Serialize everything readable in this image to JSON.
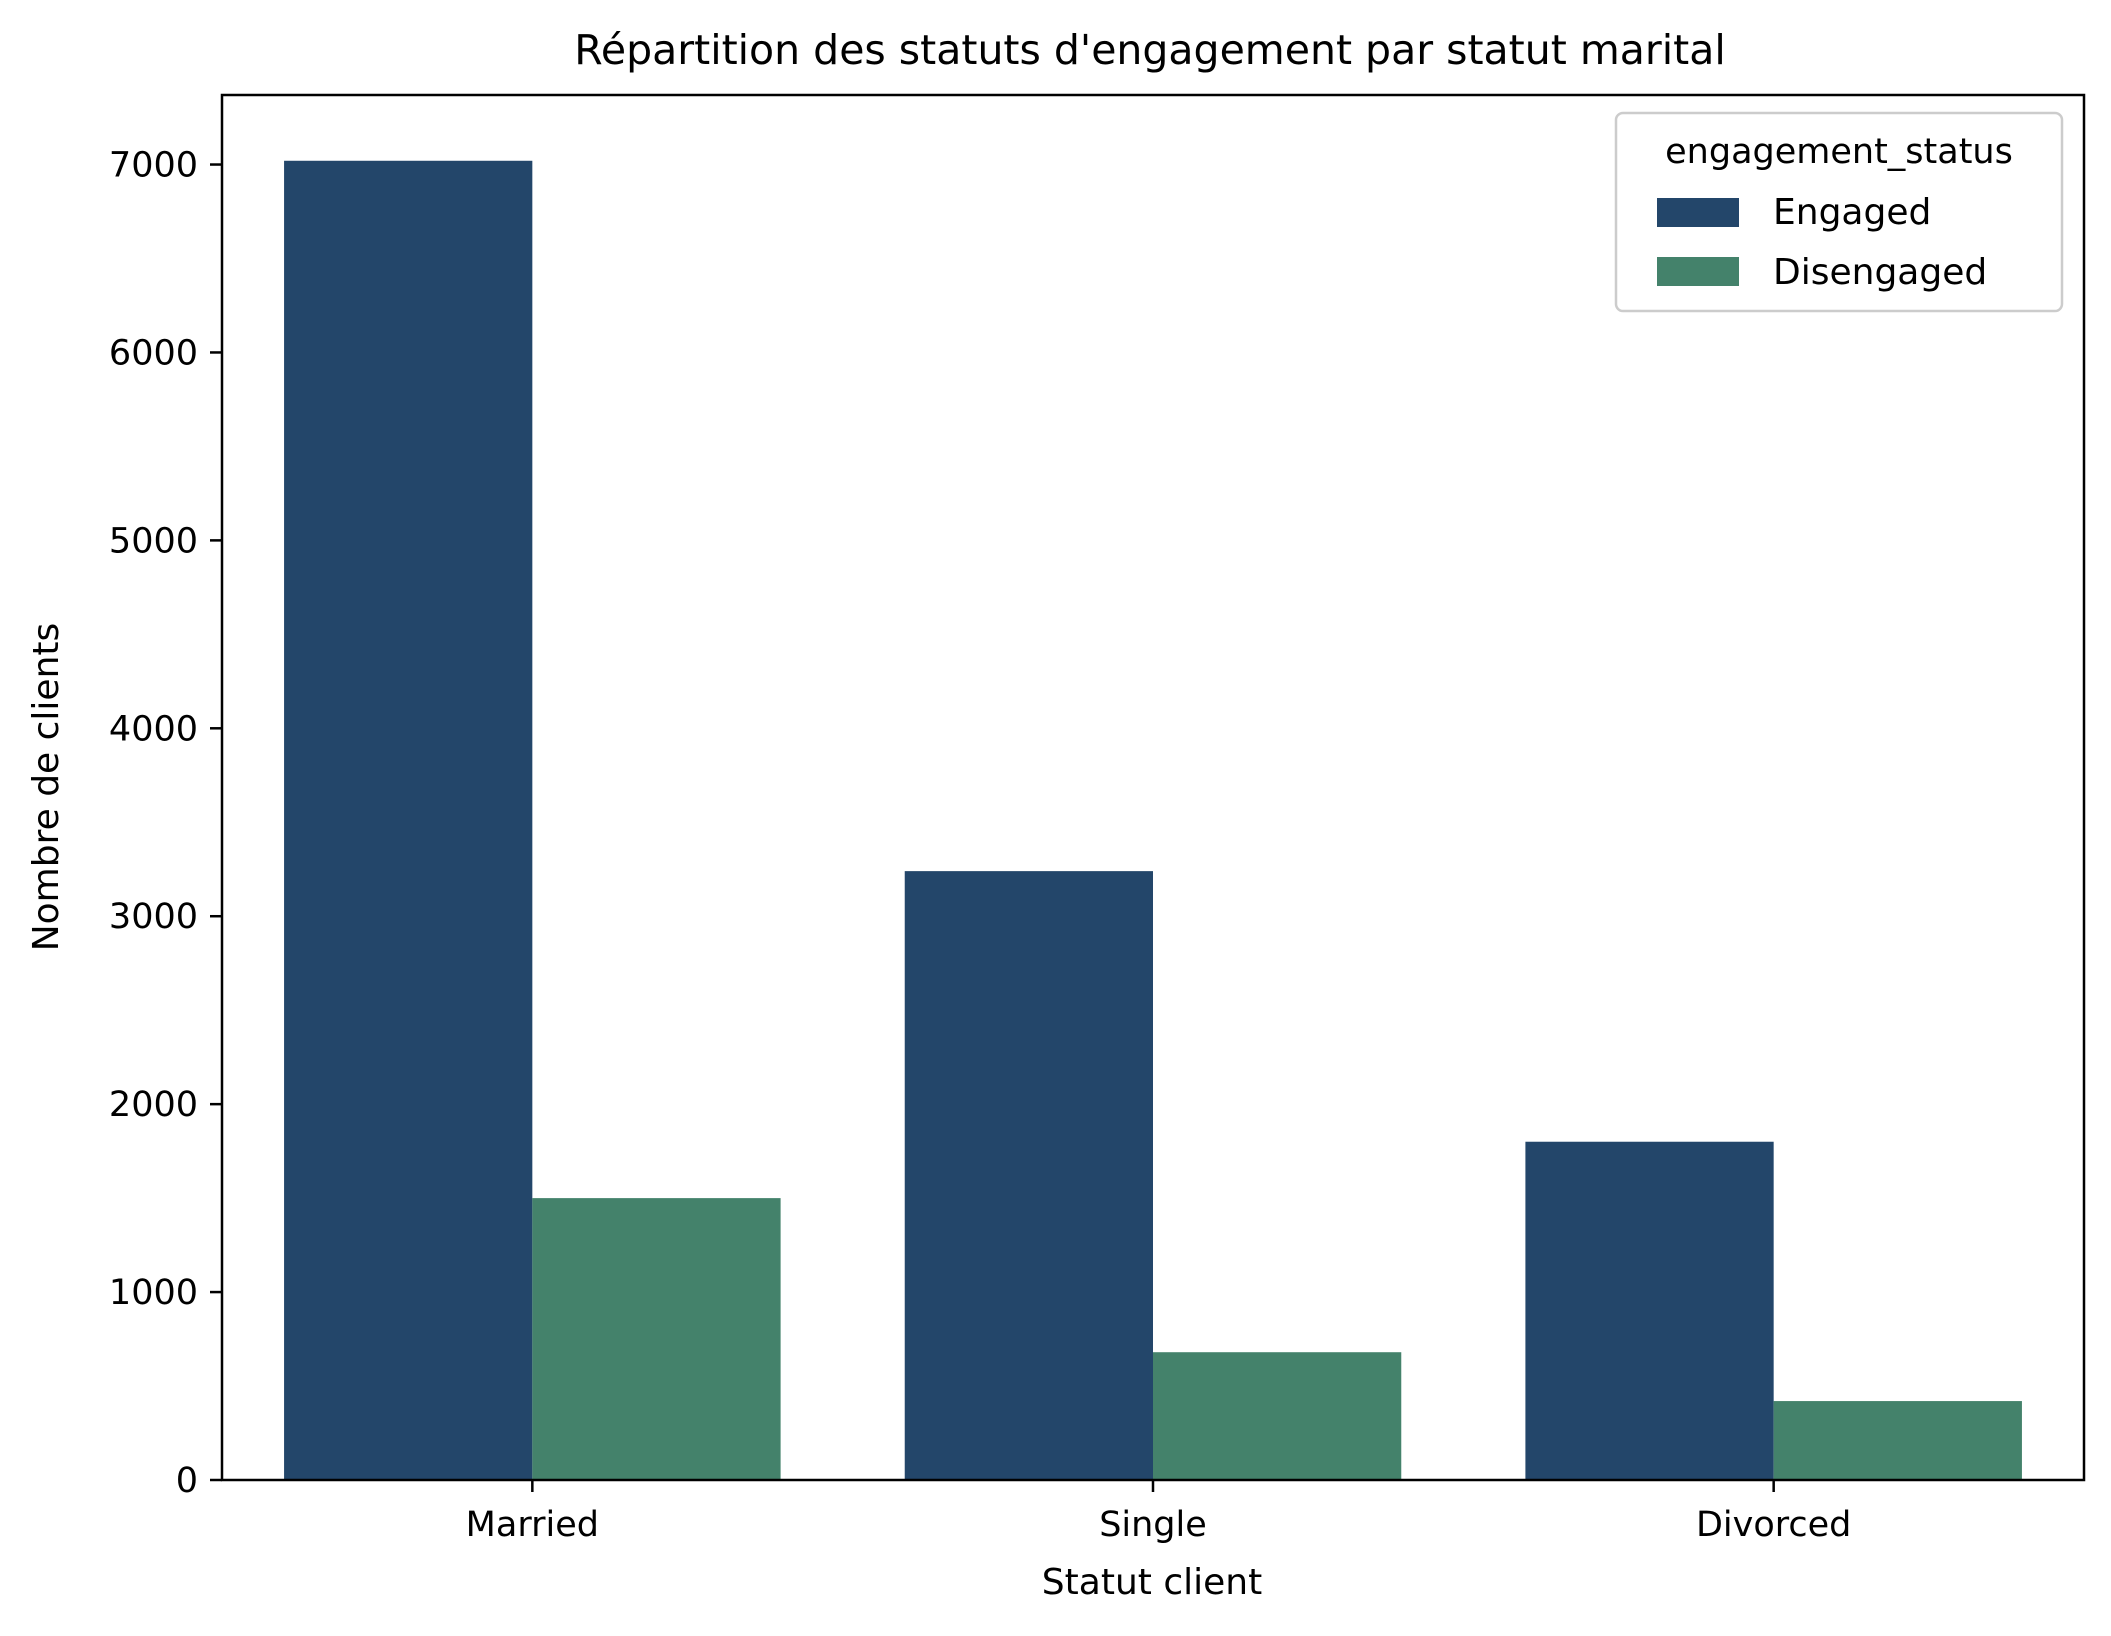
{
  "chart_data": {
    "type": "bar",
    "title": "Répartition des statuts d'engagement par statut marital",
    "xlabel": "Statut client",
    "ylabel": "Nombre de clients",
    "categories": [
      "Married",
      "Single",
      "Divorced"
    ],
    "series": [
      {
        "name": "Engaged",
        "color": "#23466a",
        "values": [
          7020,
          3240,
          1800
        ]
      },
      {
        "name": "Disengaged",
        "color": "#44826b",
        "values": [
          1500,
          680,
          420
        ]
      }
    ],
    "ylim": [
      0,
      7370
    ],
    "yticks": [
      0,
      1000,
      2000,
      3000,
      4000,
      5000,
      6000,
      7000
    ],
    "grid": false,
    "legend": {
      "title": "engagement_status",
      "placement": "top-right"
    }
  }
}
